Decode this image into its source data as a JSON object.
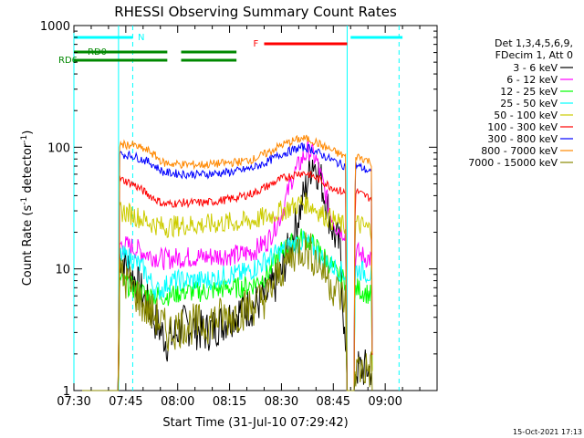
{
  "chart_data": {
    "type": "line",
    "title": "RHESSI Observing Summary Count Rates",
    "xlabel": "Start Time (31-Jul-10 07:29:42)",
    "ylabel_parts": [
      "Count Rate (s",
      "-1",
      " detector",
      "-1",
      ")"
    ],
    "y_scale": "log",
    "ylim": [
      1,
      1000
    ],
    "xlim_minutes": [
      0,
      105
    ],
    "x_tick_labels": [
      "07:30",
      "07:45",
      "08:00",
      "08:15",
      "08:30",
      "08:45",
      "09:00"
    ],
    "y_tick_labels": [
      "1",
      "10",
      "100",
      "1000"
    ],
    "x_axis_note": "x values are minutes after 07:30",
    "legend_header": [
      "Det 1,3,4,5,6,9,",
      "FDecim 1, Att 0"
    ],
    "legend_placement": "right",
    "timestamp": "15-Oct-2021 17:13",
    "series": [
      {
        "name": "3 - 6 keV",
        "color": "#000000",
        "points": [
          [
            0,
            1
          ],
          [
            12.9,
            1
          ],
          [
            13.2,
            13
          ],
          [
            16,
            10
          ],
          [
            20,
            6
          ],
          [
            24,
            3.5
          ],
          [
            27,
            2.5
          ],
          [
            32,
            3.5
          ],
          [
            38,
            3
          ],
          [
            42,
            3.5
          ],
          [
            45,
            4
          ],
          [
            48,
            4.5
          ],
          [
            52,
            5
          ],
          [
            56,
            6
          ],
          [
            60,
            9
          ],
          [
            64,
            22
          ],
          [
            67,
            45
          ],
          [
            69,
            80
          ],
          [
            71,
            60
          ],
          [
            73,
            35
          ],
          [
            75,
            20
          ],
          [
            77,
            15
          ],
          [
            78.5,
            2
          ],
          [
            79,
            1
          ],
          [
            81,
            1
          ],
          [
            81.3,
            1.5
          ],
          [
            84,
            1.5
          ],
          [
            86,
            1.5
          ],
          [
            86.3,
            1
          ]
        ]
      },
      {
        "name": "6 - 12 keV",
        "color": "#ff00ff",
        "points": [
          [
            0,
            1
          ],
          [
            12.9,
            1
          ],
          [
            13.2,
            16
          ],
          [
            17,
            15
          ],
          [
            22,
            13
          ],
          [
            26,
            12
          ],
          [
            32,
            12.5
          ],
          [
            38,
            12.5
          ],
          [
            44,
            13
          ],
          [
            48,
            13
          ],
          [
            52,
            14
          ],
          [
            56,
            17
          ],
          [
            60,
            28
          ],
          [
            63,
            55
          ],
          [
            66,
            80
          ],
          [
            68,
            95
          ],
          [
            70,
            80
          ],
          [
            72,
            50
          ],
          [
            74,
            30
          ],
          [
            76,
            22
          ],
          [
            78.5,
            20
          ],
          [
            79,
            1
          ],
          [
            81,
            1
          ],
          [
            81.3,
            14
          ],
          [
            84,
            12.5
          ],
          [
            86,
            12
          ],
          [
            86.3,
            1
          ]
        ]
      },
      {
        "name": "12 - 25 keV",
        "color": "#00ff00",
        "points": [
          [
            0,
            1
          ],
          [
            12.9,
            1
          ],
          [
            13.2,
            8
          ],
          [
            17,
            7
          ],
          [
            22,
            6
          ],
          [
            26,
            6
          ],
          [
            32,
            6.5
          ],
          [
            38,
            6.5
          ],
          [
            44,
            7
          ],
          [
            48,
            7
          ],
          [
            52,
            7.5
          ],
          [
            56,
            9
          ],
          [
            60,
            14
          ],
          [
            64,
            17
          ],
          [
            66,
            18
          ],
          [
            68,
            17
          ],
          [
            70,
            15
          ],
          [
            72,
            13
          ],
          [
            74,
            11
          ],
          [
            76,
            9
          ],
          [
            78.5,
            8
          ],
          [
            79,
            1
          ],
          [
            81,
            1
          ],
          [
            81.3,
            7
          ],
          [
            84,
            6.5
          ],
          [
            86,
            6
          ],
          [
            86.3,
            1
          ]
        ]
      },
      {
        "name": "25 - 50 keV",
        "color": "#00ffff",
        "points": [
          [
            0,
            1
          ],
          [
            12.9,
            1
          ],
          [
            13.2,
            13
          ],
          [
            17,
            12
          ],
          [
            20,
            10
          ],
          [
            24,
            6.5
          ],
          [
            26,
            7
          ],
          [
            28,
            8
          ],
          [
            32,
            8
          ],
          [
            38,
            8
          ],
          [
            42,
            8.5
          ],
          [
            45,
            9
          ],
          [
            48,
            9
          ],
          [
            52,
            10
          ],
          [
            56,
            12
          ],
          [
            60,
            14
          ],
          [
            64,
            16
          ],
          [
            66,
            17
          ],
          [
            68,
            16
          ],
          [
            70,
            14
          ],
          [
            72,
            12
          ],
          [
            74,
            11
          ],
          [
            76,
            10
          ],
          [
            78.5,
            9
          ],
          [
            79,
            1
          ],
          [
            81,
            1
          ],
          [
            81.3,
            10
          ],
          [
            84,
            9.5
          ],
          [
            86,
            9
          ],
          [
            86.3,
            1
          ]
        ]
      },
      {
        "name": "50 - 100 keV",
        "color": "#cccc00",
        "points": [
          [
            0,
            1
          ],
          [
            12.9,
            1
          ],
          [
            13.2,
            30
          ],
          [
            17,
            28
          ],
          [
            22,
            24
          ],
          [
            26,
            22
          ],
          [
            32,
            23
          ],
          [
            38,
            23
          ],
          [
            44,
            24
          ],
          [
            48,
            24
          ],
          [
            52,
            25
          ],
          [
            56,
            27
          ],
          [
            60,
            30
          ],
          [
            64,
            33
          ],
          [
            66,
            35
          ],
          [
            68,
            34
          ],
          [
            70,
            31
          ],
          [
            72,
            28
          ],
          [
            74,
            26
          ],
          [
            76,
            24
          ],
          [
            78.5,
            22
          ],
          [
            79,
            1
          ],
          [
            81,
            1
          ],
          [
            81.3,
            24
          ],
          [
            84,
            22
          ],
          [
            86,
            21
          ],
          [
            86.3,
            1
          ]
        ]
      },
      {
        "name": "100 - 300 keV",
        "color": "#ff0000",
        "points": [
          [
            0,
            1
          ],
          [
            12.9,
            1
          ],
          [
            13.2,
            55
          ],
          [
            17,
            50
          ],
          [
            22,
            40
          ],
          [
            26,
            34
          ],
          [
            32,
            35
          ],
          [
            38,
            35
          ],
          [
            44,
            37
          ],
          [
            48,
            39
          ],
          [
            52,
            42
          ],
          [
            56,
            48
          ],
          [
            60,
            55
          ],
          [
            64,
            60
          ],
          [
            66,
            62
          ],
          [
            68,
            60
          ],
          [
            70,
            56
          ],
          [
            72,
            52
          ],
          [
            74,
            48
          ],
          [
            76,
            45
          ],
          [
            78.5,
            42
          ],
          [
            79,
            1
          ],
          [
            81,
            1
          ],
          [
            81.3,
            44
          ],
          [
            84,
            40
          ],
          [
            86,
            38
          ],
          [
            86.3,
            1
          ]
        ]
      },
      {
        "name": "300 - 800 keV",
        "color": "#0000ff",
        "points": [
          [
            0,
            1
          ],
          [
            12.9,
            1
          ],
          [
            13.2,
            88
          ],
          [
            17,
            85
          ],
          [
            22,
            75
          ],
          [
            26,
            62
          ],
          [
            32,
            60
          ],
          [
            38,
            60
          ],
          [
            44,
            62
          ],
          [
            48,
            64
          ],
          [
            52,
            68
          ],
          [
            56,
            76
          ],
          [
            60,
            88
          ],
          [
            64,
            96
          ],
          [
            66,
            100
          ],
          [
            68,
            98
          ],
          [
            70,
            92
          ],
          [
            72,
            86
          ],
          [
            74,
            80
          ],
          [
            76,
            75
          ],
          [
            78.5,
            70
          ],
          [
            79,
            1
          ],
          [
            81,
            1
          ],
          [
            81.3,
            72
          ],
          [
            84,
            66
          ],
          [
            86,
            62
          ],
          [
            86.3,
            1
          ]
        ]
      },
      {
        "name": "800 - 7000 keV",
        "color": "#ff8800",
        "points": [
          [
            0,
            1
          ],
          [
            12.9,
            1
          ],
          [
            13.2,
            105
          ],
          [
            17,
            104
          ],
          [
            22,
            92
          ],
          [
            26,
            74
          ],
          [
            32,
            72
          ],
          [
            38,
            72
          ],
          [
            44,
            74
          ],
          [
            48,
            76
          ],
          [
            52,
            80
          ],
          [
            56,
            90
          ],
          [
            60,
            104
          ],
          [
            64,
            114
          ],
          [
            66,
            118
          ],
          [
            68,
            116
          ],
          [
            70,
            110
          ],
          [
            72,
            102
          ],
          [
            74,
            96
          ],
          [
            76,
            90
          ],
          [
            78.5,
            84
          ],
          [
            79,
            1
          ],
          [
            81,
            1
          ],
          [
            81.3,
            86
          ],
          [
            84,
            80
          ],
          [
            86,
            75
          ],
          [
            86.3,
            1
          ]
        ]
      },
      {
        "name": "7000 - 15000 keV",
        "color": "#888800",
        "points": [
          [
            0,
            1
          ],
          [
            12.9,
            1
          ],
          [
            13.2,
            9
          ],
          [
            17,
            7
          ],
          [
            20,
            5
          ],
          [
            24,
            4
          ],
          [
            27,
            3
          ],
          [
            32,
            3.5
          ],
          [
            38,
            3.5
          ],
          [
            42,
            4
          ],
          [
            45,
            4
          ],
          [
            48,
            4.5
          ],
          [
            52,
            5
          ],
          [
            56,
            6
          ],
          [
            60,
            10
          ],
          [
            64,
            14
          ],
          [
            66,
            15
          ],
          [
            68,
            14
          ],
          [
            70,
            12
          ],
          [
            72,
            10
          ],
          [
            74,
            8
          ],
          [
            76,
            6.5
          ],
          [
            78.5,
            5.5
          ],
          [
            79,
            1
          ],
          [
            81,
            1
          ],
          [
            81.3,
            1.5
          ],
          [
            84,
            1.5
          ],
          [
            86,
            1.5
          ],
          [
            86.3,
            1
          ]
        ]
      }
    ],
    "annotations": [
      {
        "label": "N",
        "color": "#00ffff",
        "intervals": [
          [
            0,
            17
          ]
        ],
        "level_label_side": "right"
      },
      {
        "label": "RD0",
        "color": "#008800",
        "intervals": [
          [
            0,
            27
          ],
          [
            31,
            47
          ]
        ],
        "level_label_side": "right"
      },
      {
        "label": "RD6",
        "color": "#008800",
        "intervals": [
          [
            0,
            27
          ],
          [
            31,
            47
          ]
        ],
        "level_label_side": "left"
      },
      {
        "label": "F",
        "color": "#ff0000",
        "intervals": [
          [
            55,
            79
          ]
        ],
        "level_label_side": "left"
      },
      {
        "label": "",
        "color": "#00ffff",
        "intervals": [
          [
            80,
            95
          ]
        ],
        "level_label_side": "none"
      }
    ],
    "vertical_markers": [
      {
        "x": 0,
        "color": "#00ffff",
        "style": "solid"
      },
      {
        "x": 12.9,
        "color": "#00ffff",
        "style": "solid"
      },
      {
        "x": 17,
        "color": "#00ffff",
        "style": "dashed"
      },
      {
        "x": 79,
        "color": "#00ffff",
        "style": "solid"
      },
      {
        "x": 94,
        "color": "#00ffff",
        "style": "dashed"
      }
    ]
  }
}
